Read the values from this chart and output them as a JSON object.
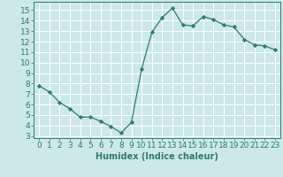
{
  "x": [
    0,
    1,
    2,
    3,
    4,
    5,
    6,
    7,
    8,
    9,
    10,
    11,
    12,
    13,
    14,
    15,
    16,
    17,
    18,
    19,
    20,
    21,
    22,
    23
  ],
  "y": [
    7.8,
    7.2,
    6.2,
    5.6,
    4.8,
    4.8,
    4.4,
    3.9,
    3.3,
    4.3,
    9.4,
    12.9,
    14.3,
    15.2,
    13.6,
    13.5,
    14.4,
    14.1,
    13.6,
    13.4,
    12.2,
    11.7,
    11.6,
    11.2
  ],
  "line_color": "#2e7d6e",
  "marker": "D",
  "marker_size": 2.2,
  "bg_color": "#cce8e8",
  "grid_color": "#ffffff",
  "xlabel": "Humidex (Indice chaleur)",
  "xlim": [
    -0.5,
    23.5
  ],
  "ylim": [
    2.8,
    15.8
  ],
  "yticks": [
    3,
    4,
    5,
    6,
    7,
    8,
    9,
    10,
    11,
    12,
    13,
    14,
    15
  ],
  "xticks": [
    0,
    1,
    2,
    3,
    4,
    5,
    6,
    7,
    8,
    9,
    10,
    11,
    12,
    13,
    14,
    15,
    16,
    17,
    18,
    19,
    20,
    21,
    22,
    23
  ],
  "label_fontsize": 7,
  "tick_fontsize": 6.5
}
